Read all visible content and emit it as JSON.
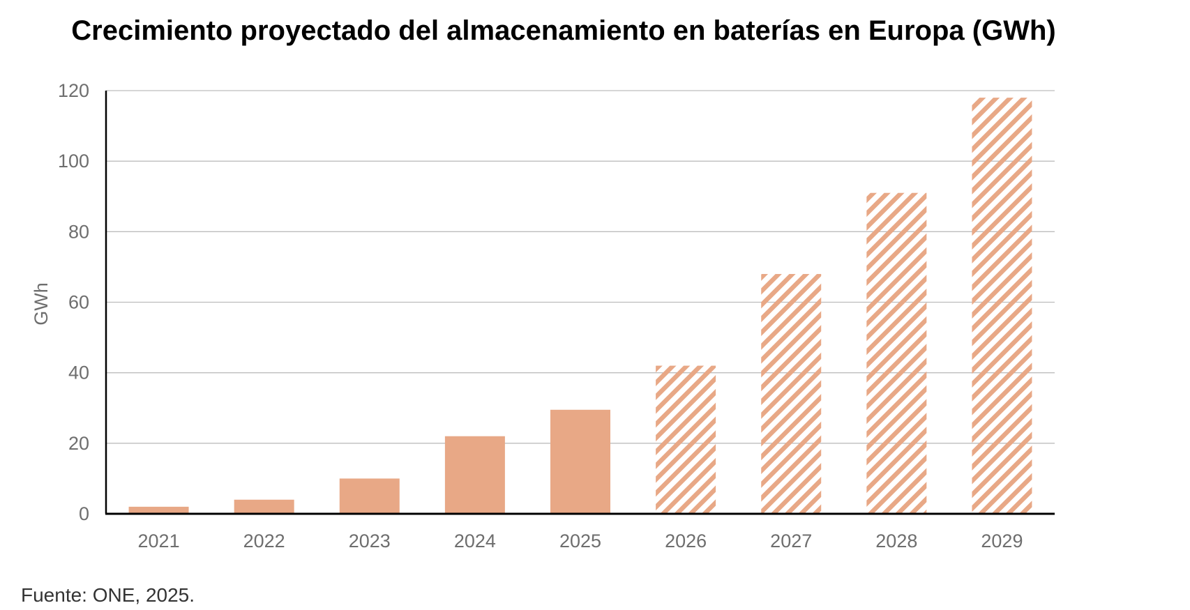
{
  "chart_data": {
    "type": "bar",
    "title": "Crecimiento proyectado del almacenamiento en baterías en Europa (GWh)",
    "ylabel": "GWh",
    "xlabel": "",
    "categories": [
      "2021",
      "2022",
      "2023",
      "2024",
      "2025",
      "2026",
      "2027",
      "2028",
      "2029"
    ],
    "values": [
      2,
      4,
      10,
      22,
      29.5,
      42,
      68,
      91,
      118
    ],
    "projected": [
      false,
      false,
      false,
      false,
      false,
      true,
      true,
      true,
      true
    ],
    "ylim": [
      0,
      120
    ],
    "yticks": [
      0,
      20,
      40,
      60,
      80,
      100,
      120
    ],
    "grid": true,
    "legend": "none",
    "colors": {
      "bar": "#e8a886",
      "hatch": "#e8a886",
      "grid": "#bdbdbd",
      "axis": "#000000",
      "tick_text": "#6e6e6e"
    }
  },
  "source_note": "Fuente: ONE, 2025."
}
